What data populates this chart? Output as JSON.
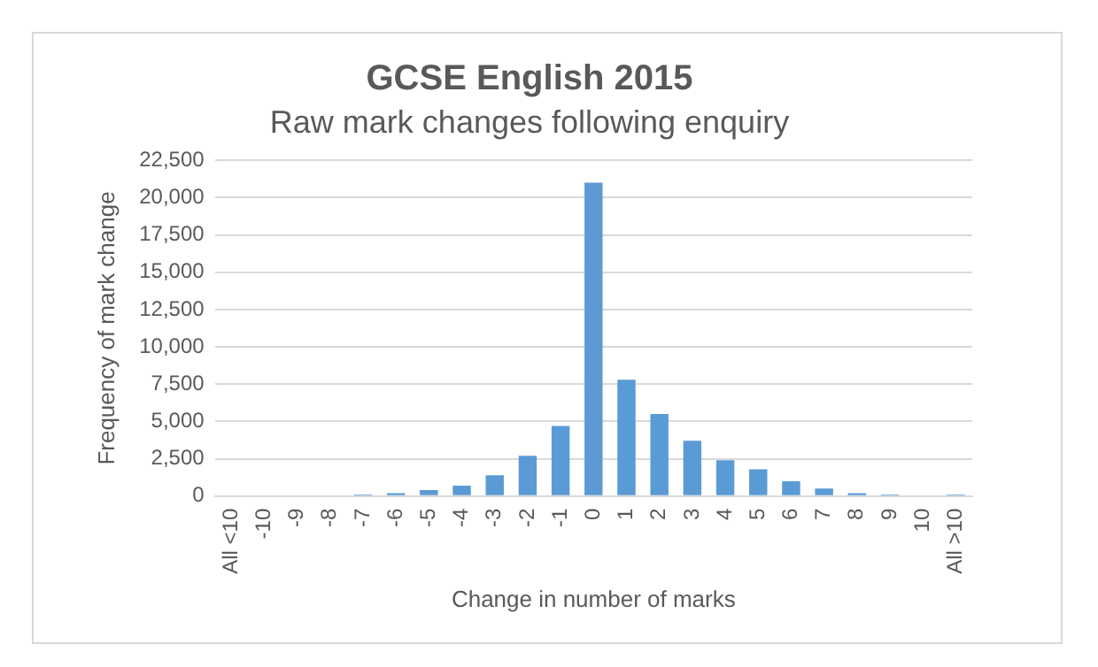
{
  "chart_data": {
    "type": "bar",
    "title": "GCSE English 2015",
    "subtitle": "Raw mark changes following enquiry",
    "xlabel": "Change in number of marks",
    "ylabel": "Frequency of mark change",
    "categories": [
      "All <10",
      "-10",
      "-9",
      "-8",
      "-7",
      "-6",
      "-5",
      "-4",
      "-3",
      "-2",
      "-1",
      "0",
      "1",
      "2",
      "3",
      "4",
      "5",
      "6",
      "7",
      "8",
      "9",
      "10",
      "All >10"
    ],
    "values": [
      0,
      0,
      0,
      0,
      100,
      200,
      400,
      700,
      1400,
      2700,
      4700,
      21000,
      7800,
      5500,
      3700,
      2400,
      1800,
      1000,
      500,
      200,
      100,
      0,
      100
    ],
    "color": "#5b9bd5",
    "ylim": [
      0,
      22500
    ],
    "yticks": [
      0,
      {
        "value": 2500,
        "label": "2,500"
      },
      {
        "value": 5000,
        "label": "5,000"
      },
      {
        "value": 7500,
        "label": "7,500"
      },
      {
        "value": 10000,
        "label": "10,000"
      },
      {
        "value": 12500,
        "label": "12,500"
      },
      {
        "value": 15000,
        "label": "15,000"
      },
      {
        "value": 17500,
        "label": "17,500"
      },
      {
        "value": 20000,
        "label": "20,000"
      },
      {
        "value": 22500,
        "label": "22,500"
      }
    ],
    "grid": "y",
    "legend": false
  }
}
